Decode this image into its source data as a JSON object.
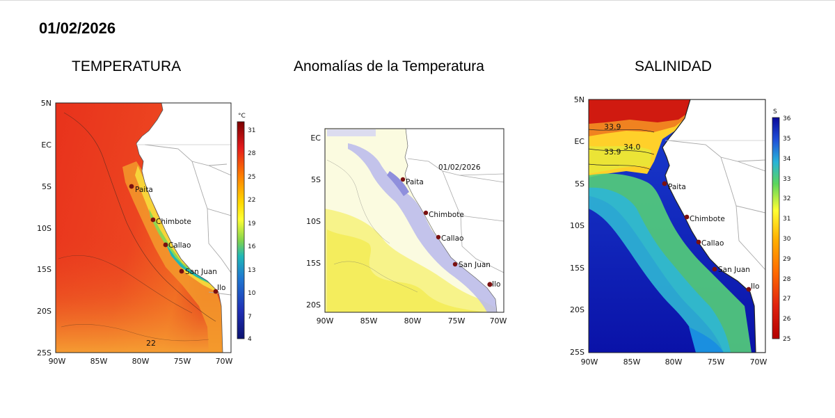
{
  "header": {
    "date": "01/02/2026"
  },
  "panels": {
    "temperature": {
      "title": "TEMPERATURA",
      "lat_labels": [
        "5N",
        "EC",
        "5S",
        "10S",
        "15S",
        "20S",
        "25S"
      ],
      "lon_labels": [
        "90W",
        "85W",
        "80W",
        "75W",
        "70W"
      ],
      "colorbar": {
        "unit": "°C",
        "ticks": [
          "31",
          "28",
          "25",
          "22",
          "19",
          "16",
          "13",
          "10",
          "7",
          "4"
        ],
        "min": 4,
        "max": 32,
        "colors": [
          "#7a0000",
          "#e41a1c",
          "#ff7f00",
          "#ffd700",
          "#ffff33",
          "#7fd34e",
          "#1fb7b7",
          "#1f78d1",
          "#1f2fb5",
          "#0b1270"
        ]
      },
      "contour_labels": [
        "22"
      ]
    },
    "anomaly": {
      "title": "Anomalías de la Temperatura",
      "inner_date": "01/02/2026",
      "lat_labels": [
        "EC",
        "5S",
        "10S",
        "15S",
        "20S"
      ],
      "lon_labels": [
        "90W",
        "85W",
        "80W",
        "75W",
        "70W"
      ]
    },
    "salinity": {
      "title": "SALINIDAD",
      "lat_labels": [
        "5N",
        "EC",
        "5S",
        "10S",
        "15S",
        "20S",
        "25S"
      ],
      "lon_labels": [
        "90W",
        "85W",
        "80W",
        "75W",
        "70W"
      ],
      "colorbar": {
        "unit": "S",
        "ticks": [
          "36",
          "35",
          "34",
          "33",
          "32",
          "31",
          "30",
          "29",
          "28",
          "27",
          "26",
          "25"
        ],
        "min": 25,
        "max": 36,
        "colors": [
          "#0a0a9a",
          "#1f4fd8",
          "#28b3d9",
          "#5cd65c",
          "#ffff33",
          "#ffb000",
          "#ff6a00",
          "#e0220f",
          "#b30000"
        ]
      },
      "contour_labels": [
        "33.9",
        "34.0",
        "33.9"
      ]
    }
  },
  "cities": [
    "Paita",
    "Chimbote",
    "Callao",
    "San Juan",
    "Ilo"
  ],
  "colors": {
    "city_marker": "#7a1010",
    "land": "#ffffff",
    "border": "#a8a8a8",
    "warm": "#e8361c",
    "anomaly_cool": "#a9a9e6",
    "anomaly_warm": "#f4ef6a",
    "sal_deep": "#1020c0"
  }
}
